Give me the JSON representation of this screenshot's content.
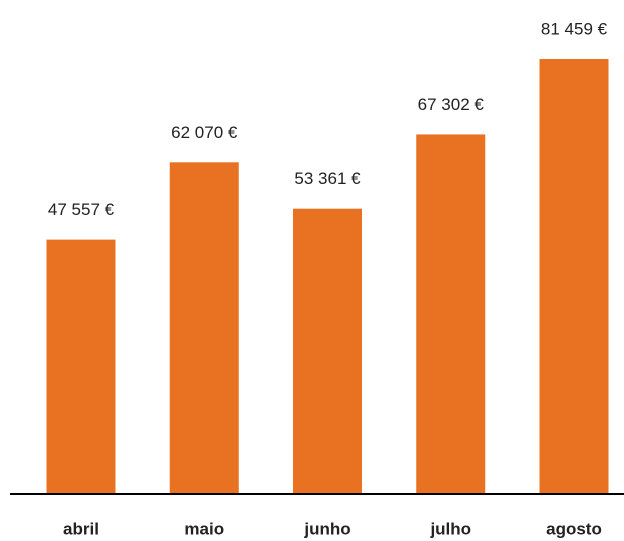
{
  "chart_data": {
    "type": "bar",
    "categories": [
      "abril",
      "maio",
      "junho",
      "julho",
      "agosto"
    ],
    "values": [
      47557,
      62070,
      53361,
      67302,
      81459
    ],
    "value_labels": [
      "47 557 €",
      "62 070 €",
      "53 361 €",
      "67 302 €",
      "81 459 €"
    ],
    "color": "#e87122"
  }
}
